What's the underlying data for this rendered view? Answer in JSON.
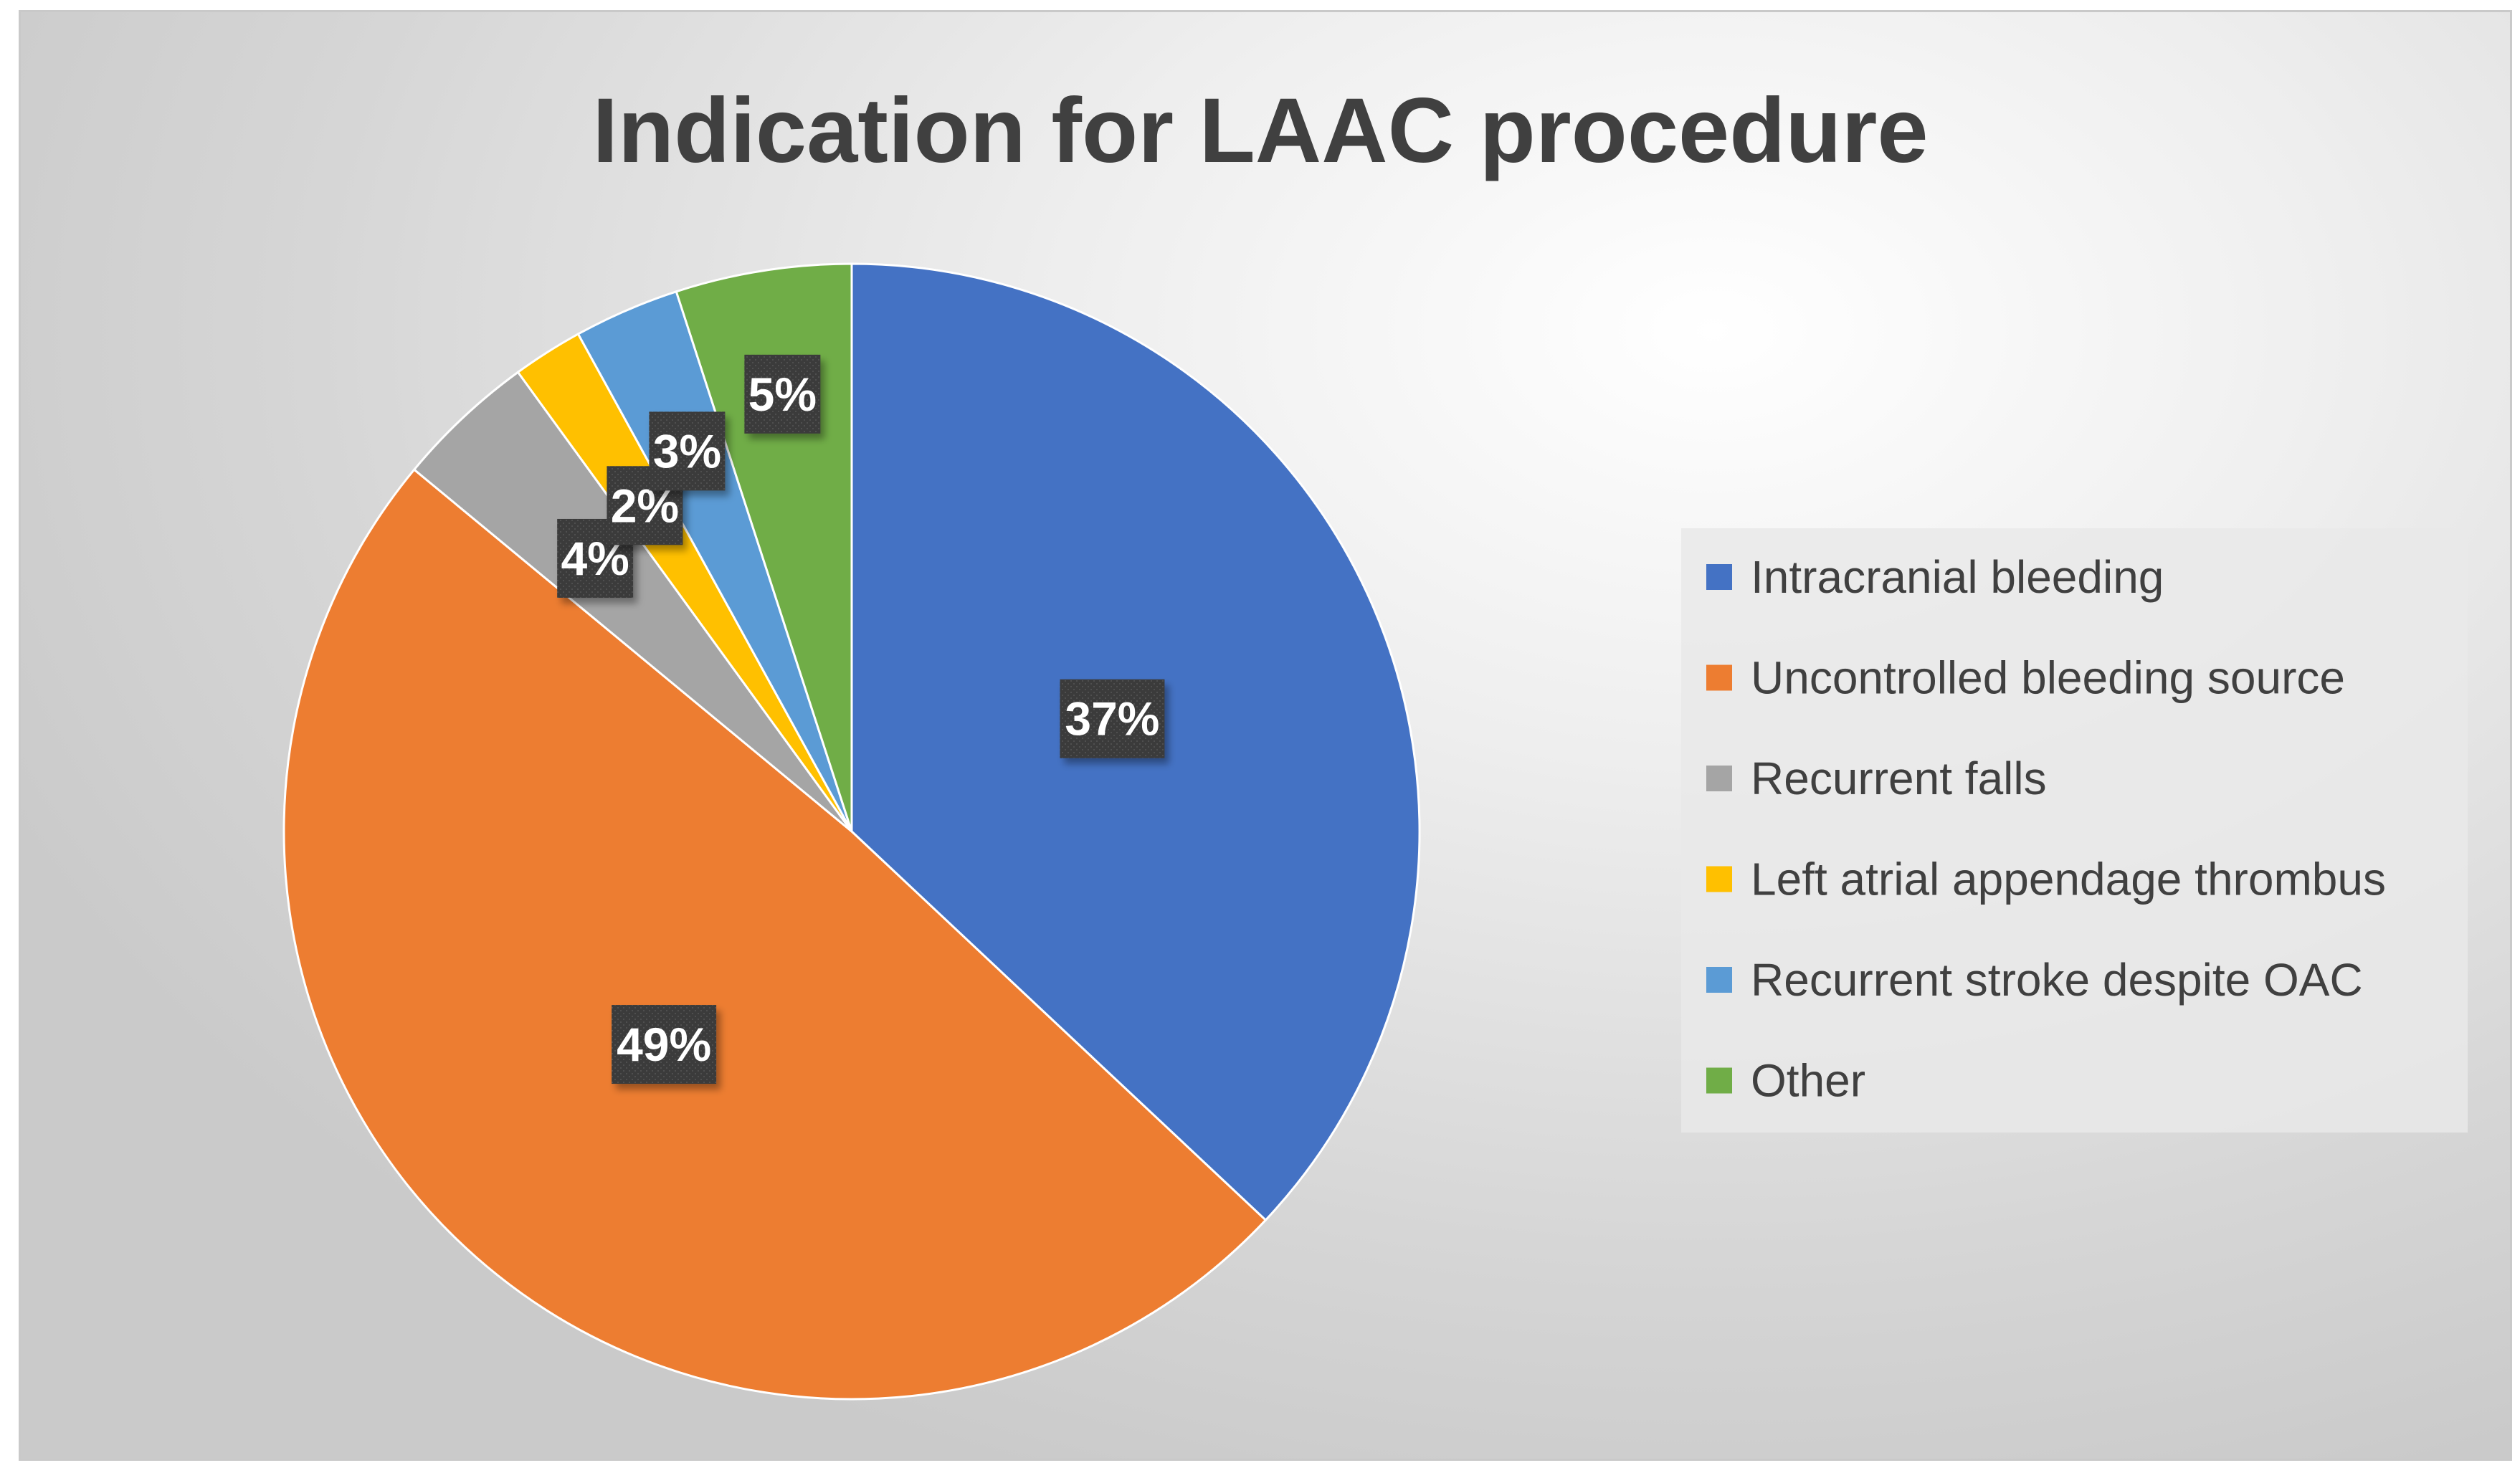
{
  "chart_data": {
    "type": "pie",
    "title": "Indication for LAAC procedure",
    "categories": [
      "Intracranial bleeding",
      "Uncontrolled bleeding source",
      "Recurrent falls",
      "Left atrial appendage thrombus",
      "Recurrent stroke despite OAC",
      "Other"
    ],
    "values": [
      37,
      49,
      4,
      2,
      3,
      5
    ],
    "data_labels": [
      "37%",
      "49%",
      "4%",
      "2%",
      "3%",
      "5%"
    ],
    "colors": [
      "#4472c4",
      "#ed7d31",
      "#a5a5a5",
      "#ffc000",
      "#5b9bd5",
      "#70ad47"
    ],
    "start_angle": "12 o'clock, clockwise",
    "legend_position": "right",
    "xlabel": "",
    "ylabel": ""
  }
}
